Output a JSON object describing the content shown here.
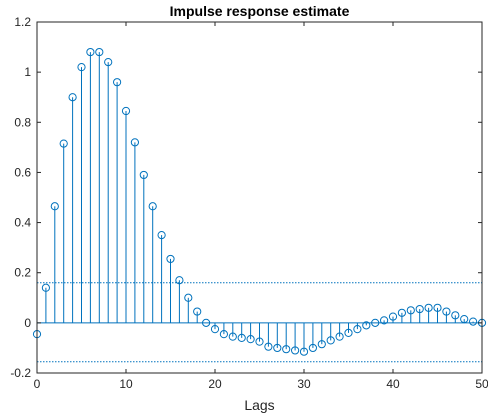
{
  "chart_data": {
    "type": "stem",
    "title": "Impulse response estimate",
    "xlabel": "Lags",
    "ylabel": "",
    "xlim": [
      0,
      50
    ],
    "ylim": [
      -0.2,
      1.2
    ],
    "xticks": [
      0,
      10,
      20,
      30,
      40,
      50
    ],
    "yticks": [
      -0.2,
      0,
      0.2,
      0.4,
      0.6,
      0.8,
      1,
      1.2
    ],
    "ytick_labels": [
      "-0.2",
      "0",
      "0.2",
      "0.4",
      "0.6",
      "0.8",
      "1",
      "1.2"
    ],
    "grid": false,
    "color": "#0072bd",
    "confidence_bounds": [
      0.16,
      -0.155
    ],
    "series": [
      {
        "x": [
          0,
          1,
          2,
          3,
          4,
          5,
          6,
          7,
          8,
          9,
          10,
          11,
          12,
          13,
          14,
          15,
          16,
          17,
          18,
          19,
          20,
          21,
          22,
          23,
          24,
          25,
          26,
          27,
          28,
          29,
          30,
          31,
          32,
          33,
          34,
          35,
          36,
          37,
          38,
          39,
          40,
          41,
          42,
          43,
          44,
          45,
          46,
          47,
          48,
          49,
          50
        ],
        "values": [
          -0.045,
          0.14,
          0.465,
          0.715,
          0.9,
          1.02,
          1.08,
          1.08,
          1.04,
          0.96,
          0.845,
          0.72,
          0.59,
          0.465,
          0.35,
          0.255,
          0.17,
          0.1,
          0.045,
          0.0,
          -0.025,
          -0.045,
          -0.055,
          -0.06,
          -0.065,
          -0.075,
          -0.095,
          -0.1,
          -0.105,
          -0.11,
          -0.115,
          -0.1,
          -0.085,
          -0.07,
          -0.055,
          -0.04,
          -0.025,
          -0.01,
          0.0,
          0.01,
          0.025,
          0.04,
          0.05,
          0.055,
          0.06,
          0.06,
          0.045,
          0.03,
          0.015,
          0.005,
          0.0
        ]
      }
    ]
  }
}
